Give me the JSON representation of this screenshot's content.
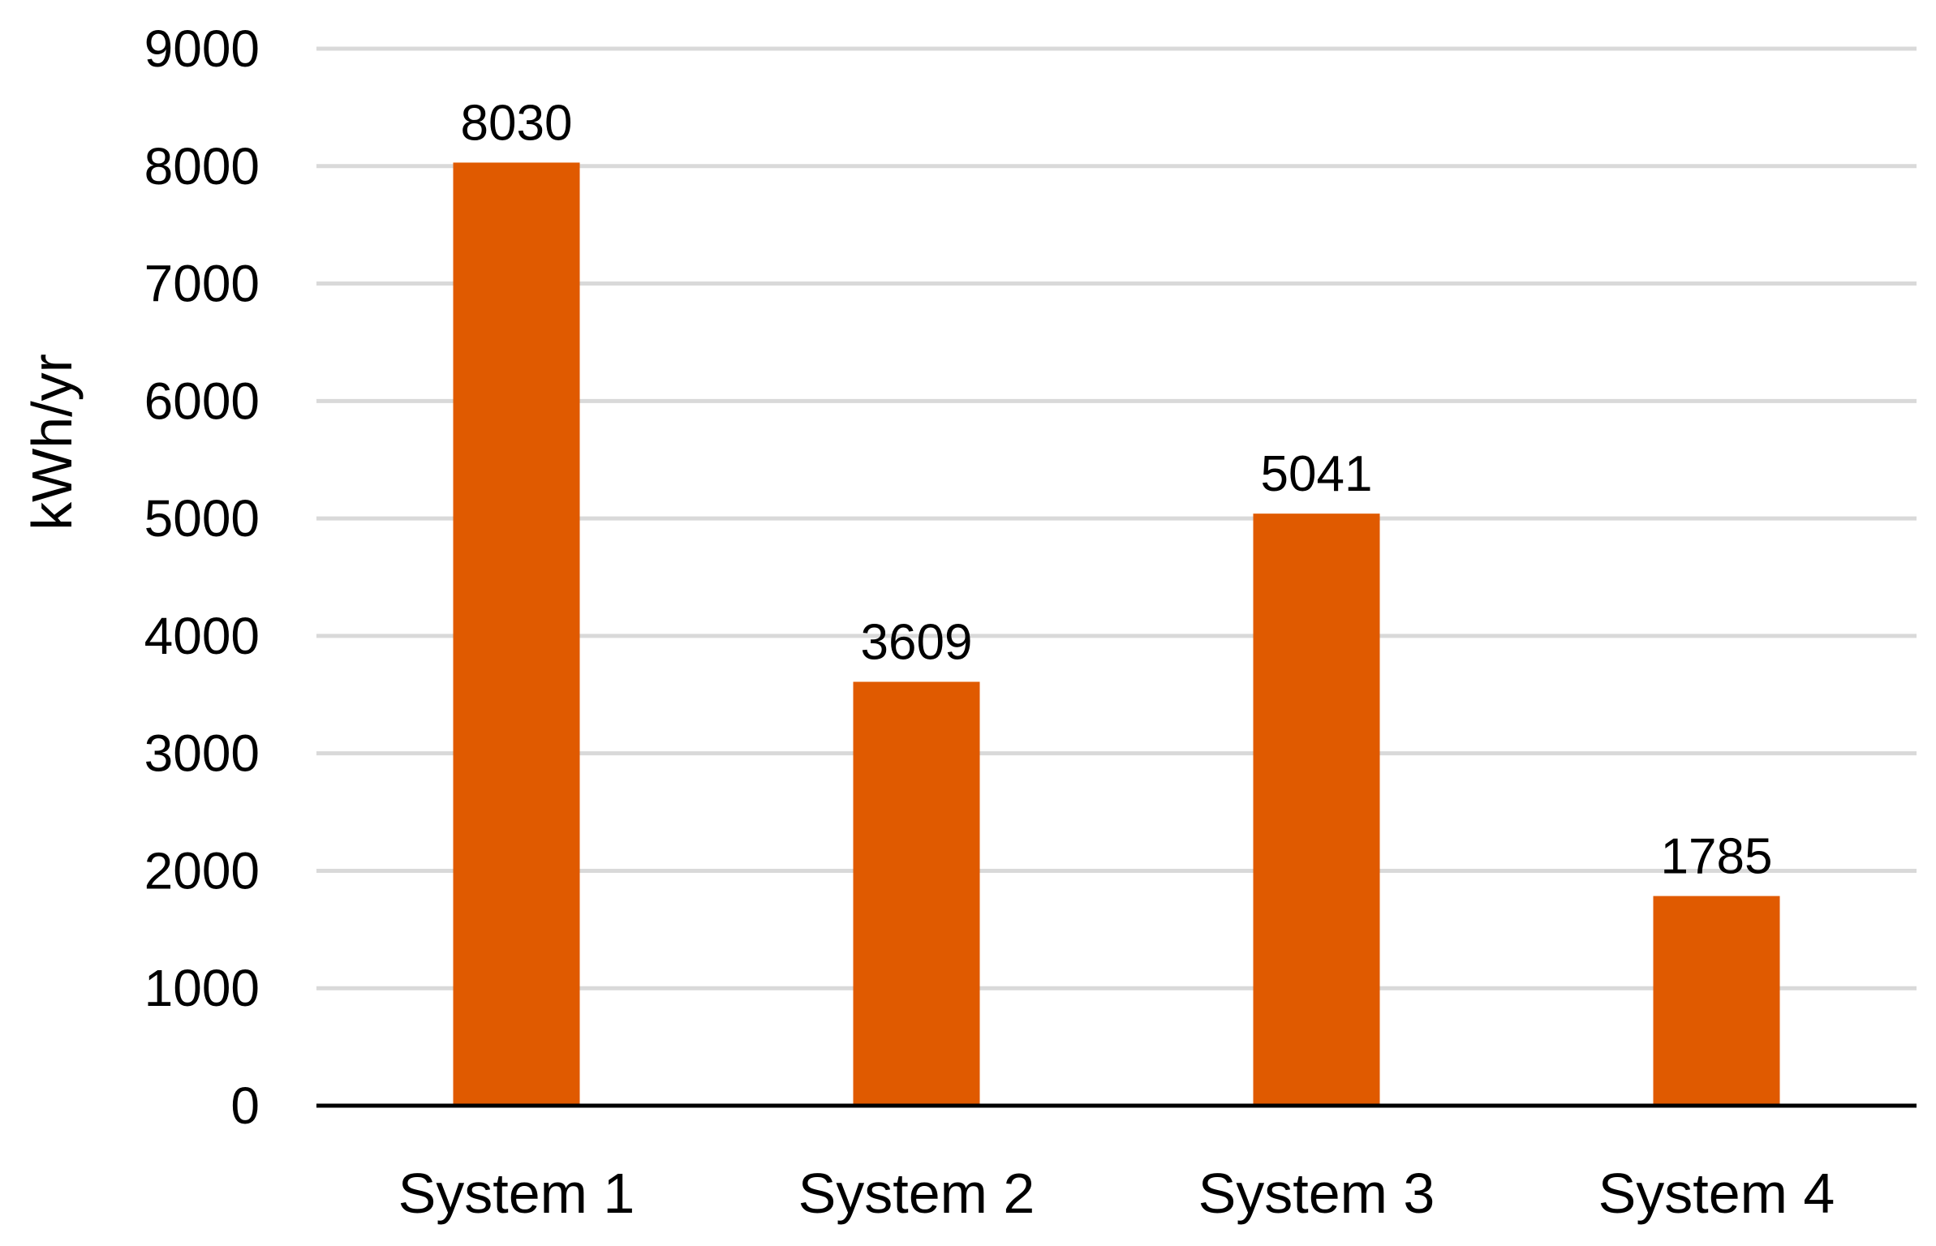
{
  "chart_data": {
    "type": "bar",
    "categories": [
      "System 1",
      "System 2",
      "System 3",
      "System 4"
    ],
    "values": [
      8030,
      3609,
      5041,
      1785
    ],
    "data_labels": [
      "8030",
      "3609",
      "5041",
      "1785"
    ],
    "title": "",
    "xlabel": "",
    "ylabel": "kWh/yr",
    "ylim": [
      0,
      9000
    ],
    "yticks": [
      0,
      1000,
      2000,
      3000,
      4000,
      5000,
      6000,
      7000,
      8000,
      9000
    ],
    "ytick_labels": [
      "0",
      "1000",
      "2000",
      "3000",
      "4000",
      "5000",
      "6000",
      "7000",
      "8000",
      "9000"
    ],
    "grid": true,
    "legend": "none",
    "colors": {
      "bar": "#E05A00",
      "grid": "#D9D9D9",
      "axis": "#000000",
      "text": "#000000"
    }
  }
}
